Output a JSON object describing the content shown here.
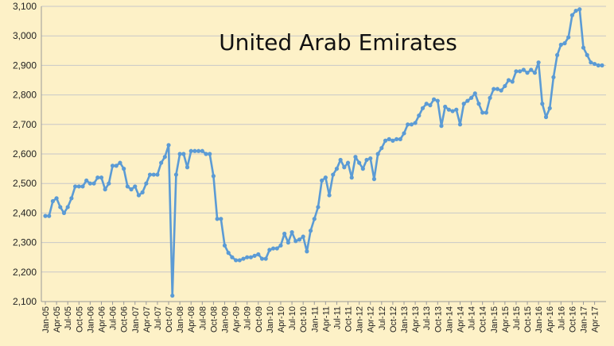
{
  "chart_data": {
    "type": "line",
    "title": "United Arab Emirates",
    "xlabel": "",
    "ylabel": "",
    "ylim": [
      2100,
      3100
    ],
    "yticks": [
      2100,
      2200,
      2300,
      2400,
      2500,
      2600,
      2700,
      2800,
      2900,
      3000,
      3100
    ],
    "ytick_labels": [
      "2,100",
      "2,200",
      "2,300",
      "2,400",
      "2,500",
      "2,600",
      "2,700",
      "2,800",
      "2,900",
      "3,000",
      "3,100"
    ],
    "grid": true,
    "legend": "none",
    "colors": {
      "line": "#5b9bd5",
      "grid": "#c8c8c8",
      "background": "#fdf1c7"
    },
    "xtick_labels": [
      "Jan-05",
      "Apr-05",
      "Jul-05",
      "Oct-05",
      "Jan-06",
      "Apr-06",
      "Jul-06",
      "Oct-06",
      "Jan-07",
      "Apr-07",
      "Jul-07",
      "Oct-07",
      "Jan-08",
      "Apr-08",
      "Jul-08",
      "Oct-08",
      "Jan-09",
      "Apr-09",
      "Jul-09",
      "Oct-09",
      "Jan-10",
      "Apr-10",
      "Jul-10",
      "Oct-10",
      "Jan-11",
      "Apr-11",
      "Jul-11",
      "Oct-11",
      "Jan-12",
      "Apr-12",
      "Jul-12",
      "Oct-12",
      "Jan-13",
      "Apr-13",
      "Jul-13",
      "Oct-13",
      "Jan-14",
      "Apr-14",
      "Jul-14",
      "Oct-14",
      "Jan-15",
      "Apr-15",
      "Jul-15",
      "Oct-15",
      "Jan-16",
      "Apr-16",
      "Jul-16",
      "Oct-16",
      "Jan-17",
      "Apr-17"
    ],
    "x": [
      "Jan-05",
      "Feb-05",
      "Mar-05",
      "Apr-05",
      "May-05",
      "Jun-05",
      "Jul-05",
      "Aug-05",
      "Sep-05",
      "Oct-05",
      "Nov-05",
      "Dec-05",
      "Jan-06",
      "Feb-06",
      "Mar-06",
      "Apr-06",
      "May-06",
      "Jun-06",
      "Jul-06",
      "Aug-06",
      "Sep-06",
      "Oct-06",
      "Nov-06",
      "Dec-06",
      "Jan-07",
      "Feb-07",
      "Mar-07",
      "Apr-07",
      "May-07",
      "Jun-07",
      "Jul-07",
      "Aug-07",
      "Sep-07",
      "Oct-07",
      "Nov-07",
      "Dec-07",
      "Jan-08",
      "Feb-08",
      "Mar-08",
      "Apr-08",
      "May-08",
      "Jun-08",
      "Jul-08",
      "Aug-08",
      "Sep-08",
      "Oct-08",
      "Nov-08",
      "Dec-08",
      "Jan-09",
      "Feb-09",
      "Mar-09",
      "Apr-09",
      "May-09",
      "Jun-09",
      "Jul-09",
      "Aug-09",
      "Sep-09",
      "Oct-09",
      "Nov-09",
      "Dec-09",
      "Jan-10",
      "Feb-10",
      "Mar-10",
      "Apr-10",
      "May-10",
      "Jun-10",
      "Jul-10",
      "Aug-10",
      "Sep-10",
      "Oct-10",
      "Nov-10",
      "Dec-10",
      "Jan-11",
      "Feb-11",
      "Mar-11",
      "Apr-11",
      "May-11",
      "Jun-11",
      "Jul-11",
      "Aug-11",
      "Sep-11",
      "Oct-11",
      "Nov-11",
      "Dec-11",
      "Jan-12",
      "Feb-12",
      "Mar-12",
      "Apr-12",
      "May-12",
      "Jun-12",
      "Jul-12",
      "Aug-12",
      "Sep-12",
      "Oct-12",
      "Nov-12",
      "Dec-12",
      "Jan-13",
      "Feb-13",
      "Mar-13",
      "Apr-13",
      "May-13",
      "Jun-13",
      "Jul-13",
      "Aug-13",
      "Sep-13",
      "Oct-13",
      "Nov-13",
      "Dec-13",
      "Jan-14",
      "Feb-14",
      "Mar-14",
      "Apr-14",
      "May-14",
      "Jun-14",
      "Jul-14",
      "Aug-14",
      "Sep-14",
      "Oct-14",
      "Nov-14",
      "Dec-14",
      "Jan-15",
      "Feb-15",
      "Mar-15",
      "Apr-15",
      "May-15",
      "Jun-15",
      "Jul-15",
      "Aug-15",
      "Sep-15",
      "Oct-15",
      "Nov-15",
      "Dec-15",
      "Jan-16",
      "Feb-16",
      "Mar-16",
      "Apr-16",
      "May-16",
      "Jun-16",
      "Jul-16",
      "Aug-16",
      "Sep-16",
      "Oct-16",
      "Nov-16",
      "Dec-16",
      "Jan-17",
      "Feb-17",
      "Mar-17",
      "Apr-17",
      "May-17",
      "Jun-17"
    ],
    "series": [
      {
        "values": [
          2390,
          2390,
          2440,
          2450,
          2420,
          2400,
          2420,
          2450,
          2490,
          2490,
          2490,
          2510,
          2500,
          2500,
          2520,
          2520,
          2480,
          2500,
          2560,
          2560,
          2570,
          2550,
          2490,
          2480,
          2490,
          2460,
          2470,
          2500,
          2530,
          2530,
          2530,
          2570,
          2590,
          2630,
          2120,
          2530,
          2600,
          2600,
          2555,
          2610,
          2610,
          2610,
          2610,
          2600,
          2600,
          2525,
          2380,
          2380,
          2290,
          2265,
          2250,
          2240,
          2240,
          2245,
          2250,
          2250,
          2255,
          2260,
          2245,
          2245,
          2275,
          2280,
          2280,
          2290,
          2330,
          2300,
          2335,
          2305,
          2310,
          2320,
          2270,
          2340,
          2380,
          2420,
          2510,
          2520,
          2460,
          2530,
          2550,
          2580,
          2555,
          2570,
          2520,
          2590,
          2570,
          2550,
          2580,
          2585,
          2515,
          2600,
          2620,
          2645,
          2650,
          2645,
          2650,
          2650,
          2670,
          2700,
          2700,
          2705,
          2730,
          2755,
          2770,
          2765,
          2785,
          2780,
          2695,
          2760,
          2750,
          2745,
          2750,
          2700,
          2770,
          2780,
          2790,
          2805,
          2770,
          2740,
          2740,
          2790,
          2820,
          2820,
          2815,
          2830,
          2850,
          2845,
          2880,
          2880,
          2885,
          2875,
          2885,
          2875,
          2910,
          2770,
          2725,
          2755,
          2860,
          2935,
          2970,
          2975,
          2995,
          3070,
          3085,
          3090,
          2960,
          2935,
          2910,
          2905,
          2900,
          2900
        ]
      }
    ]
  }
}
